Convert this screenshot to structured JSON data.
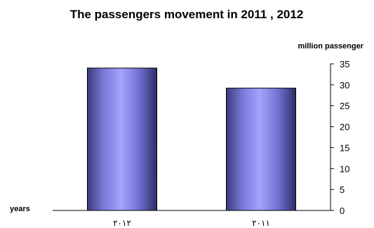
{
  "chart_data": {
    "type": "bar",
    "title": "The passengers movement in 2011 , 2012",
    "ylabel": "million passenger",
    "xlabel": "years",
    "categories": [
      "٢٠١٢",
      "٢٠١١"
    ],
    "values": [
      34,
      29.2
    ],
    "ylim": [
      0,
      35
    ],
    "yticks": [
      0,
      5,
      10,
      15,
      20,
      25,
      30,
      35
    ],
    "yaxis_side": "right",
    "grid": false,
    "legend": "none",
    "bar_color": "#9999ff"
  }
}
